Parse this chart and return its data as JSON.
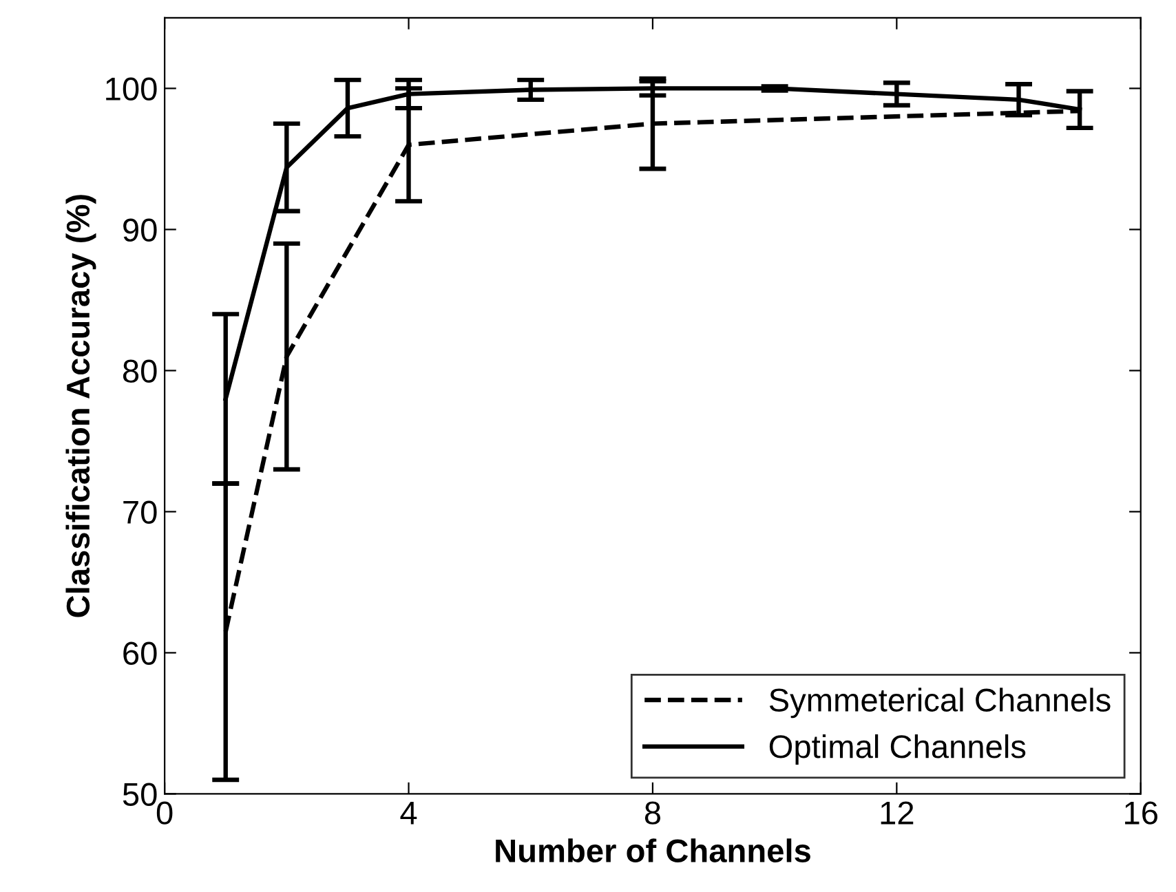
{
  "chart_data": {
    "type": "line",
    "xlabel": "Number of Channels",
    "ylabel": "Classification Accuracy (%)",
    "xlim": [
      0,
      16
    ],
    "xticks": [
      0,
      4,
      8,
      12,
      16
    ],
    "ylim": [
      50,
      105
    ],
    "yticks": [
      50,
      60,
      70,
      80,
      90,
      100
    ],
    "grid": false,
    "legend": "bottom right",
    "marker": "none",
    "series": [
      {
        "name": "Symmeterical Channels",
        "color": "#000000",
        "line_style": "dashed",
        "x": [
          1,
          2,
          4,
          8,
          15
        ],
        "values": [
          61.5,
          81,
          96,
          97.5,
          98.4
        ],
        "errors": [
          10.5,
          8,
          4,
          3.2,
          null
        ]
      },
      {
        "name": "Optimal Channels",
        "color": "#000000",
        "line_style": "solid",
        "x": [
          1,
          2,
          3,
          4,
          6,
          8,
          10,
          12,
          14,
          15
        ],
        "values": [
          78,
          94.4,
          98.6,
          99.6,
          99.9,
          100,
          100,
          99.6,
          99.2,
          98.5
        ],
        "errors": [
          6,
          3.1,
          2,
          1,
          0.7,
          0.5,
          0.15,
          0.8,
          1.1,
          1.3
        ]
      }
    ]
  }
}
